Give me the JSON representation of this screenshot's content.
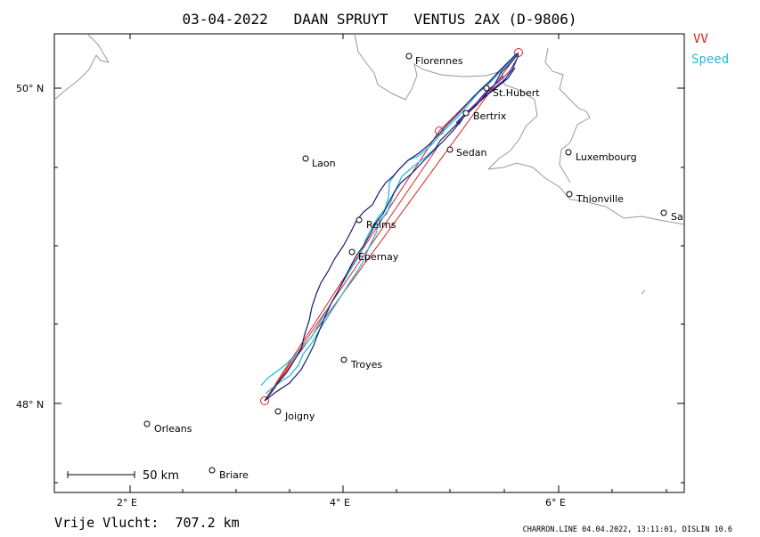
{
  "title": "03-04-2022   DAAN SPRUYT   VENTUS 2AX (D-9806)",
  "legend": [
    {
      "label": "VV",
      "color": "#dd2222"
    },
    {
      "label": "Speed",
      "color": "#22bbdd"
    }
  ],
  "axes": {
    "lat_labels": [
      "50° N",
      "48° N"
    ],
    "lon_labels": [
      "2° E",
      "4° E",
      "6° E"
    ]
  },
  "cities": [
    {
      "name": "Florennes"
    },
    {
      "name": "St.Hubert"
    },
    {
      "name": "Bertrix"
    },
    {
      "name": "Sedan"
    },
    {
      "name": "Luxembourg"
    },
    {
      "name": "Thionville"
    },
    {
      "name": "Sa"
    },
    {
      "name": "Laon"
    },
    {
      "name": "Reims"
    },
    {
      "name": "Epernay"
    },
    {
      "name": "Troyes"
    },
    {
      "name": "Joigny"
    },
    {
      "name": "Orleans"
    },
    {
      "name": "Briare"
    }
  ],
  "scale_label": "50  km",
  "distance_label": "Vrije Vlucht:  707.2 km",
  "footer": "CHARRON.LINE 04.04.2022, 13:11:01, DISLIN 10.6",
  "colors": {
    "track": "#1a1a6e",
    "speed": "#22bbdd",
    "task": "#dd2222",
    "border": "#999999"
  }
}
